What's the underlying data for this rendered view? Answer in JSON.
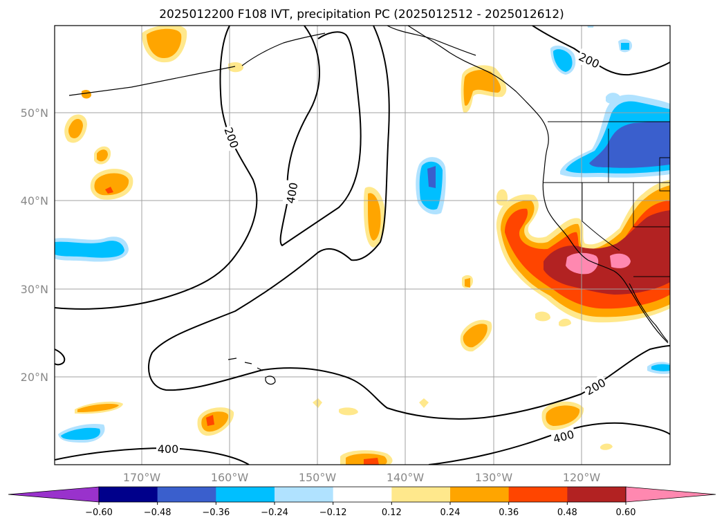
{
  "title": "2025012200 F108 IVT, precipitation PC (2025012512 - 2025012612)",
  "lat_labels": [
    "50°N",
    "40°N",
    "30°N",
    "20°N"
  ],
  "lon_labels": [
    "170°W",
    "160°W",
    "150°W",
    "140°W",
    "130°W",
    "120°W"
  ],
  "contour_labels": {
    "a": "200",
    "b": "400",
    "c": "200",
    "d": "200",
    "e": "400",
    "f": "400"
  },
  "colorbar": {
    "ticks": [
      "−0.60",
      "−0.48",
      "−0.36",
      "−0.24",
      "−0.12",
      "0.12",
      "0.24",
      "0.36",
      "0.48",
      "0.60"
    ],
    "colors": [
      "#9932cc",
      "#00008b",
      "#3a5fcd",
      "#00bfff",
      "#b0e2ff",
      "#ffffff",
      "#ffe88c",
      "#ffa500",
      "#ff4500",
      "#b22222",
      "#ff88b0"
    ]
  },
  "fill_colors": {
    "light_yellow": "#ffe88c",
    "orange": "#ffa500",
    "red_orange": "#ff4500",
    "dark_red": "#b22222",
    "pink": "#ff88b0",
    "light_blue": "#b0e2ff",
    "cyan": "#00bfff",
    "blue": "#3a5fcd"
  }
}
